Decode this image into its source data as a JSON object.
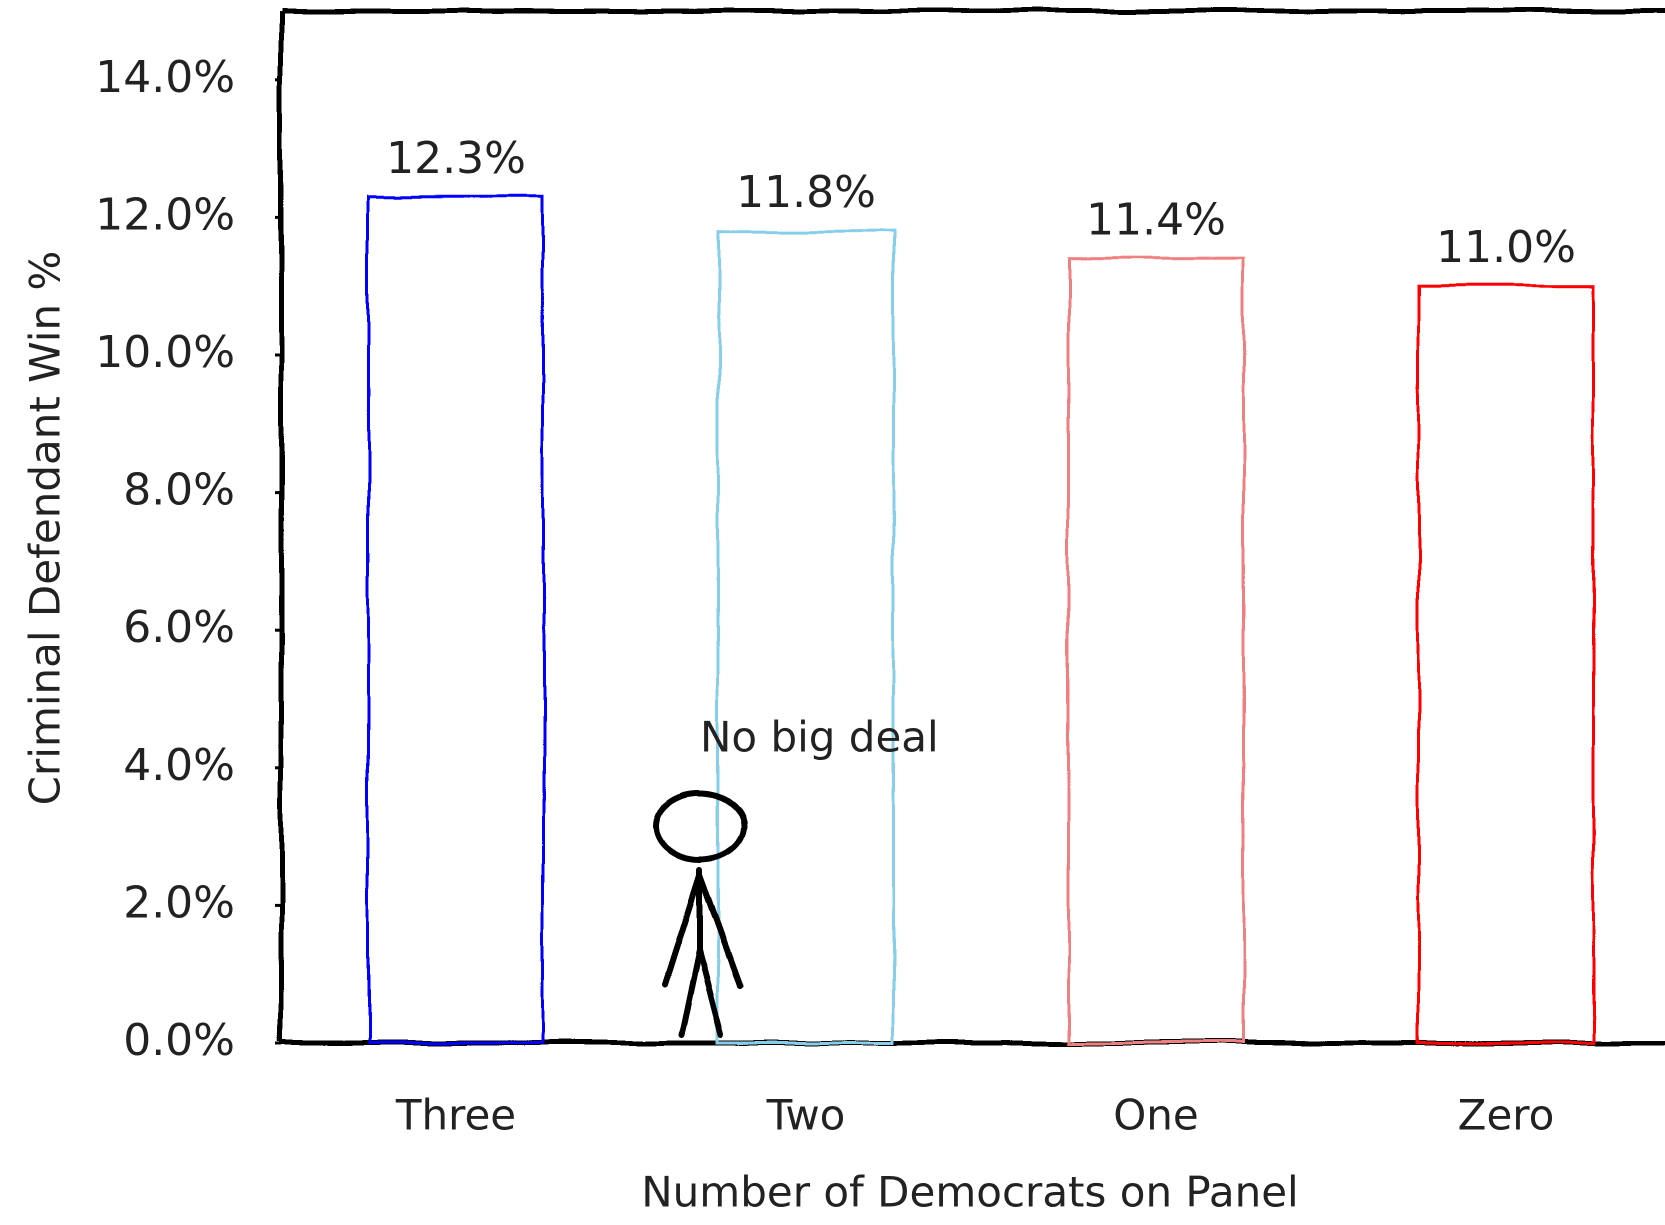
{
  "chart_data": {
    "type": "bar",
    "categories": [
      "Three",
      "Two",
      "One",
      "Zero"
    ],
    "values": [
      12.3,
      11.8,
      11.4,
      11.0
    ],
    "value_labels": [
      "12.3%",
      "11.8%",
      "11.4%",
      "11.0%"
    ],
    "colors": [
      "#0000ff",
      "#87ceeb",
      "#f08080",
      "#ff0000"
    ],
    "x_label": "Number of Democrats on Panel",
    "y_label": "Criminal Defendant Win %",
    "annotation": "No big deal",
    "ylim": [
      0,
      15
    ],
    "yticks": [
      {
        "value": 0,
        "label": "0.0%"
      },
      {
        "value": 2,
        "label": "2.0%"
      },
      {
        "value": 4,
        "label": "4.0%"
      },
      {
        "value": 6,
        "label": "6.0%"
      },
      {
        "value": 8,
        "label": "8.0%"
      },
      {
        "value": 10,
        "label": "10.0%"
      },
      {
        "value": 12,
        "label": "12.0%"
      },
      {
        "value": 14,
        "label": "14.0%"
      }
    ],
    "grid": false
  }
}
